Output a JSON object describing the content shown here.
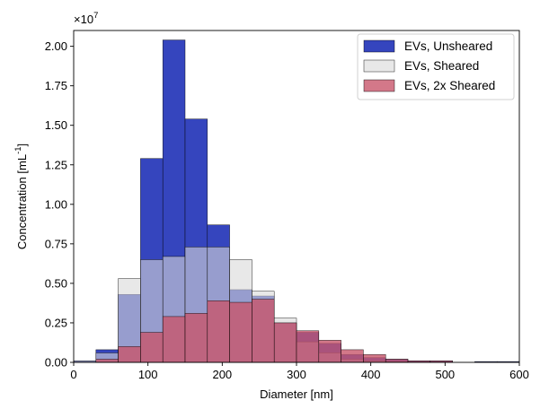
{
  "chart_data": {
    "type": "bar",
    "xlabel": "Diameter [nm]",
    "ylabel_text": "Concentration [mL",
    "ylabel_sup": "-1",
    "ylabel_close": "]",
    "scale_base": "×10",
    "scale_exp": "7",
    "xlim": [
      0,
      600
    ],
    "ylim": [
      0,
      2.1
    ],
    "x_ticks": [
      0,
      100,
      200,
      300,
      400,
      500,
      600
    ],
    "x_tick_labels": [
      "0",
      "100",
      "200",
      "300",
      "400",
      "500",
      "600"
    ],
    "y_ticks": [
      0,
      0.25,
      0.5,
      0.75,
      1.0,
      1.25,
      1.5,
      1.75,
      2.0
    ],
    "y_tick_labels": [
      "0.00",
      "0.25",
      "0.50",
      "0.75",
      "1.00",
      "1.25",
      "1.50",
      "1.75",
      "2.00"
    ],
    "bin_edges": [
      0,
      30,
      60,
      90,
      120,
      150,
      180,
      210,
      240,
      270,
      300,
      330,
      360,
      390,
      420,
      450,
      480,
      510,
      540,
      570,
      600
    ],
    "grid": false,
    "legend_position": "top-right",
    "series": [
      {
        "name": "EVs, Unsheared",
        "color": "#3545be",
        "opacity": 1.0,
        "values": [
          0.01,
          0.08,
          0.43,
          1.29,
          2.04,
          1.54,
          0.87,
          0.46,
          0.42,
          0.25,
          0.19,
          0.12,
          0.05,
          0.03,
          0.02,
          0.01,
          0.01,
          0.0,
          0.005,
          0.005
        ]
      },
      {
        "name": "EVs, Sheared",
        "color": "#d9d9d9",
        "opacity": 0.6,
        "values": [
          0.01,
          0.06,
          0.53,
          0.65,
          0.67,
          0.73,
          0.73,
          0.65,
          0.45,
          0.28,
          0.13,
          0.06,
          0.02,
          0.01,
          0.005,
          0.0,
          0.0,
          0.0,
          0.0,
          0.0
        ]
      },
      {
        "name": "EVs, 2x Sheared",
        "color": "#c8566b",
        "opacity": 0.8,
        "values": [
          0.0,
          0.02,
          0.1,
          0.19,
          0.29,
          0.31,
          0.39,
          0.38,
          0.4,
          0.25,
          0.2,
          0.14,
          0.08,
          0.05,
          0.02,
          0.01,
          0.01,
          0.0,
          0.0,
          0.0
        ]
      }
    ]
  }
}
